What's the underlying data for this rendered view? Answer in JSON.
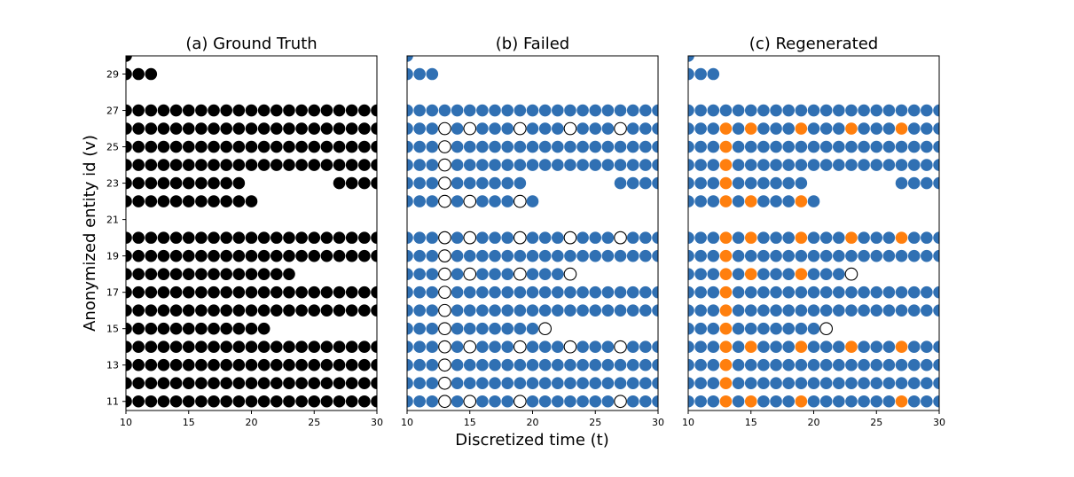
{
  "chart_data": {
    "type": "scatter",
    "xlabel": "Discretized time (t)",
    "ylabel": "Anonymized entity id (v)",
    "xlim": [
      10,
      30
    ],
    "ylim": [
      10.5,
      30
    ],
    "x_ticks": [
      "10",
      "15",
      "20",
      "25",
      "30"
    ],
    "y_ticks": [
      "11",
      "13",
      "15",
      "17",
      "19",
      "21",
      "23",
      "25",
      "27",
      "29"
    ],
    "colors": {
      "ground_truth": "#000000",
      "observed": "#3070b3",
      "failed": "#ffffff",
      "regenerated": "#ff7f0e"
    },
    "base_rows": [
      {
        "v": 30,
        "times": [
          10
        ]
      },
      {
        "v": 29,
        "times": [
          10,
          11,
          12
        ]
      },
      {
        "v": 27,
        "times": [
          10,
          11,
          12,
          13,
          14,
          15,
          16,
          17,
          18,
          19,
          20,
          21,
          22,
          23,
          24,
          25,
          26,
          27,
          28,
          29,
          30
        ]
      },
      {
        "v": 26,
        "times": [
          10,
          11,
          12,
          13,
          14,
          15,
          16,
          17,
          18,
          19,
          20,
          21,
          22,
          23,
          24,
          25,
          26,
          27,
          28,
          29,
          30
        ]
      },
      {
        "v": 25,
        "times": [
          10,
          11,
          12,
          13,
          14,
          15,
          16,
          17,
          18,
          19,
          20,
          21,
          22,
          23,
          24,
          25,
          26,
          27,
          28,
          29,
          30
        ]
      },
      {
        "v": 24,
        "times": [
          10,
          11,
          12,
          13,
          14,
          15,
          16,
          17,
          18,
          19,
          20,
          21,
          22,
          23,
          24,
          25,
          26,
          27,
          28,
          29,
          30
        ]
      },
      {
        "v": 23,
        "times": [
          10,
          11,
          12,
          13,
          14,
          15,
          16,
          17,
          18,
          19,
          27,
          28,
          29,
          30
        ]
      },
      {
        "v": 22,
        "times": [
          10,
          11,
          12,
          13,
          14,
          15,
          16,
          17,
          18,
          19,
          20
        ]
      },
      {
        "v": 20,
        "times": [
          10,
          11,
          12,
          13,
          14,
          15,
          16,
          17,
          18,
          19,
          20,
          21,
          22,
          23,
          24,
          25,
          26,
          27,
          28,
          29,
          30
        ]
      },
      {
        "v": 19,
        "times": [
          10,
          11,
          12,
          13,
          14,
          15,
          16,
          17,
          18,
          19,
          20,
          21,
          22,
          23,
          24,
          25,
          26,
          27,
          28,
          29,
          30
        ]
      },
      {
        "v": 18,
        "times": [
          10,
          11,
          12,
          13,
          14,
          15,
          16,
          17,
          18,
          19,
          20,
          21,
          22,
          23
        ]
      },
      {
        "v": 17,
        "times": [
          10,
          11,
          12,
          13,
          14,
          15,
          16,
          17,
          18,
          19,
          20,
          21,
          22,
          23,
          24,
          25,
          26,
          27,
          28,
          29,
          30
        ]
      },
      {
        "v": 16,
        "times": [
          10,
          11,
          12,
          13,
          14,
          15,
          16,
          17,
          18,
          19,
          20,
          21,
          22,
          23,
          24,
          25,
          26,
          27,
          28,
          29,
          30
        ]
      },
      {
        "v": 15,
        "times": [
          10,
          11,
          12,
          13,
          14,
          15,
          16,
          17,
          18,
          19,
          20,
          21
        ]
      },
      {
        "v": 14,
        "times": [
          10,
          11,
          12,
          13,
          14,
          15,
          16,
          17,
          18,
          19,
          20,
          21,
          22,
          23,
          24,
          25,
          26,
          27,
          28,
          29,
          30
        ]
      },
      {
        "v": 13,
        "times": [
          10,
          11,
          12,
          13,
          14,
          15,
          16,
          17,
          18,
          19,
          20,
          21,
          22,
          23,
          24,
          25,
          26,
          27,
          28,
          29,
          30
        ]
      },
      {
        "v": 12,
        "times": [
          10,
          11,
          12,
          13,
          14,
          15,
          16,
          17,
          18,
          19,
          20,
          21,
          22,
          23,
          24,
          25,
          26,
          27,
          28,
          29,
          30
        ]
      },
      {
        "v": 11,
        "times": [
          10,
          11,
          12,
          13,
          14,
          15,
          16,
          17,
          18,
          19,
          20,
          21,
          22,
          23,
          24,
          25,
          26,
          27,
          28,
          29,
          30
        ]
      }
    ],
    "failed_points": [
      {
        "v": 26,
        "times": [
          13,
          15,
          19,
          23,
          27
        ]
      },
      {
        "v": 25,
        "times": [
          13
        ]
      },
      {
        "v": 24,
        "times": [
          13
        ]
      },
      {
        "v": 23,
        "times": [
          13
        ]
      },
      {
        "v": 22,
        "times": [
          13,
          15,
          19
        ]
      },
      {
        "v": 20,
        "times": [
          13,
          15,
          19,
          23,
          27
        ]
      },
      {
        "v": 19,
        "times": [
          13
        ]
      },
      {
        "v": 18,
        "times": [
          13,
          15,
          19,
          23
        ]
      },
      {
        "v": 17,
        "times": [
          13
        ]
      },
      {
        "v": 16,
        "times": [
          13
        ]
      },
      {
        "v": 15,
        "times": [
          13,
          21
        ]
      },
      {
        "v": 14,
        "times": [
          13,
          15,
          19,
          23,
          27
        ]
      },
      {
        "v": 13,
        "times": [
          13
        ]
      },
      {
        "v": 12,
        "times": [
          13
        ]
      },
      {
        "v": 11,
        "times": [
          13,
          15,
          19,
          27
        ]
      }
    ],
    "unrecovered_points": [
      {
        "v": 18,
        "times": [
          23
        ]
      },
      {
        "v": 15,
        "times": [
          21
        ]
      }
    ],
    "panels": [
      {
        "title": "(a) Ground Truth",
        "mode": "ground_truth"
      },
      {
        "title": "(b) Failed",
        "mode": "failed"
      },
      {
        "title": "(c) Regenerated",
        "mode": "regenerated"
      }
    ]
  }
}
